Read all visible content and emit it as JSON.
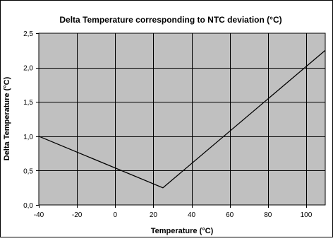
{
  "chart_data": {
    "type": "line",
    "title": "Delta Temperature corresponding to NTC deviation (°C)",
    "xlabel": "Temperature (°C)",
    "ylabel": "Delta Temperature (°C)",
    "xlim": [
      -40,
      110
    ],
    "ylim": [
      0,
      2.5
    ],
    "x_ticks": [
      "-40",
      "-20",
      "0",
      "20",
      "40",
      "60",
      "80",
      "100"
    ],
    "y_ticks": [
      "0,0",
      "0,5",
      "1,0",
      "1,5",
      "2,0",
      "2,5"
    ],
    "grid": true,
    "legend": "none",
    "series": [
      {
        "x": [
          -40,
          25,
          110
        ],
        "y": [
          1.0,
          0.25,
          2.25
        ]
      }
    ],
    "colors": {
      "plot_background": "#c0c0c0",
      "grid": "#000000",
      "line": "#000000",
      "frame": "#000000"
    }
  }
}
